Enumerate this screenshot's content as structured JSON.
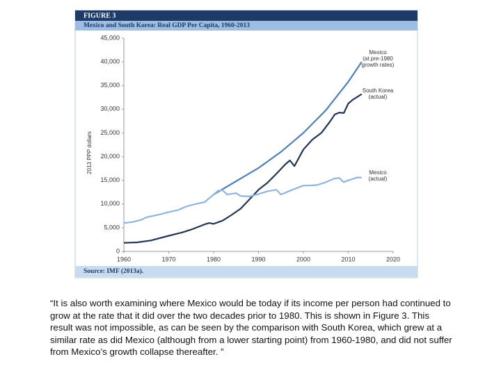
{
  "figure_label": "FIGURE 3",
  "source": "Source: IMF (2013a).",
  "caption": "“It is also worth examining where Mexico would be today if its income per person had continued to grow at the rate that it did over the two decades prior to 1980. This is shown in Figure 3. This result was not impossible, as can be seen by the comparison with South Korea, which grew at a similar rate as did Mexico (although from a lower starting point) from 1960-1980, and did not suffer from Mexico’s growth collapse thereafter. ”",
  "chart_data": {
    "type": "line",
    "title": "Mexico and South Korea: Real GDP Per Capita, 1960-2013",
    "y_label": "2013 PPP dollars",
    "xlim": [
      1960,
      2020
    ],
    "xticks": [
      1960,
      1970,
      1980,
      1990,
      2000,
      2010,
      2020
    ],
    "ylim": [
      0,
      45000
    ],
    "yticks": [
      0,
      {
        "value": 5000,
        "label": "5,000"
      },
      {
        "value": 10000,
        "label": "10,000"
      },
      {
        "value": 15000,
        "label": "15,000"
      },
      {
        "value": 20000,
        "label": "20,000"
      },
      {
        "value": 25000,
        "label": "25,000"
      },
      {
        "value": 30000,
        "label": "30,000"
      },
      {
        "value": 35000,
        "label": "35,000"
      },
      {
        "value": 40000,
        "label": "40,000"
      },
      {
        "value": 45000,
        "label": "45,000"
      }
    ],
    "series": [
      {
        "name": "Mexico (at pre-1980 growth rates)",
        "color": "#4f7fb8",
        "x": [
          1980,
          1985,
          1990,
          1995,
          2000,
          2005,
          2010,
          2013
        ],
        "values": [
          12000,
          14800,
          17600,
          21000,
          25000,
          29800,
          35800,
          40000
        ]
      },
      {
        "name": "South Korea (actual)",
        "color": "#1f3553",
        "x": [
          1960,
          1963,
          1966,
          1970,
          1973,
          1975,
          1978,
          1979,
          1980,
          1982,
          1984,
          1986,
          1988,
          1990,
          1992,
          1994,
          1996,
          1997,
          1998,
          2000,
          2002,
          2004,
          2006,
          2007,
          2008,
          2009,
          2010,
          2011,
          2012,
          2013
        ],
        "values": [
          1800,
          1900,
          2300,
          3300,
          4000,
          4600,
          5700,
          6000,
          5800,
          6500,
          7700,
          9000,
          11000,
          13000,
          14500,
          16400,
          18400,
          19200,
          18000,
          21500,
          23600,
          25000,
          27500,
          28900,
          29300,
          29200,
          31200,
          32000,
          32600,
          33200
        ]
      },
      {
        "name": "Mexico (actual)",
        "color": "#8fb4dc",
        "x": [
          1960,
          1962,
          1964,
          1965,
          1968,
          1970,
          1972,
          1974,
          1976,
          1978,
          1980,
          1981,
          1982,
          1983,
          1985,
          1986,
          1988,
          1990,
          1992,
          1994,
          1995,
          1997,
          2000,
          2001,
          2003,
          2005,
          2007,
          2008,
          2009,
          2010,
          2012,
          2013
        ],
        "values": [
          6000,
          6200,
          6700,
          7200,
          7800,
          8300,
          8700,
          9500,
          10000,
          10400,
          12000,
          12800,
          12900,
          12000,
          12300,
          11700,
          11600,
          12100,
          12700,
          13000,
          12000,
          12800,
          13900,
          13900,
          14000,
          14600,
          15400,
          15500,
          14600,
          15000,
          15600,
          15600
        ]
      }
    ],
    "annotations": [
      {
        "lines": [
          "Mexico",
          "(at pre-1980",
          "growth rates)"
        ]
      },
      {
        "lines": [
          "South Korea",
          "(actual)"
        ]
      },
      {
        "lines": [
          "Mexico",
          "(actual)"
        ]
      }
    ]
  }
}
